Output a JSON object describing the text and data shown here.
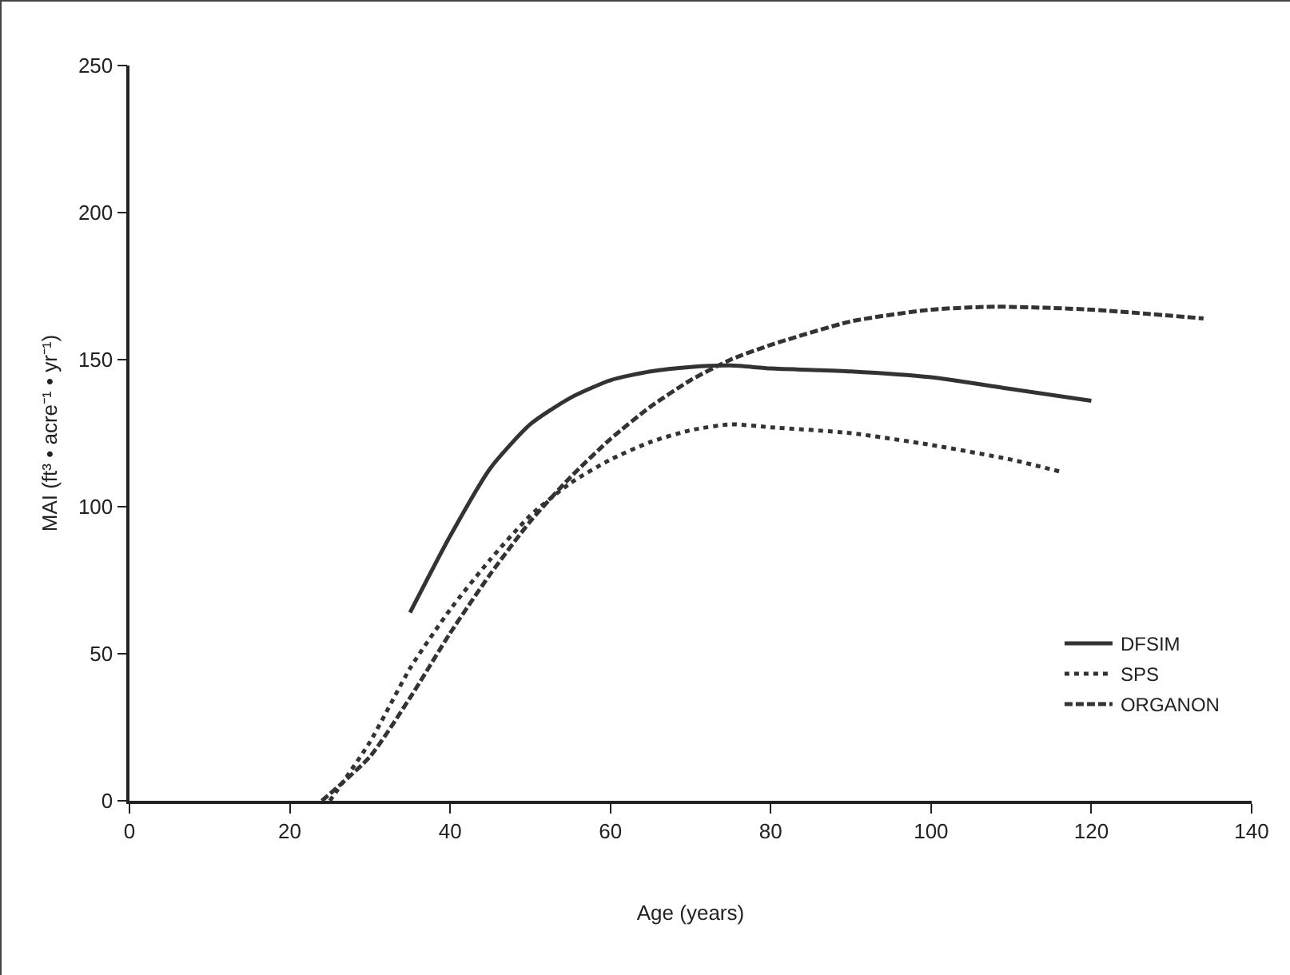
{
  "chart_data": {
    "type": "line",
    "xlabel": "Age (years)",
    "ylabel": "MAI (ft³ • acre⁻¹ • yr⁻¹)",
    "xlim": [
      0,
      140
    ],
    "xticks": [
      0,
      20,
      40,
      60,
      80,
      100,
      120,
      140
    ],
    "ylim": [
      0,
      250
    ],
    "yticks": [
      0,
      50,
      100,
      150,
      200,
      250
    ],
    "grid": false,
    "legend": "bottom right",
    "marker": "none",
    "series": [
      {
        "name": "DFSIM",
        "color": "#333333",
        "line_style": "solid",
        "x": [
          35,
          40,
          45,
          50,
          55,
          60,
          65,
          70,
          75,
          80,
          90,
          100,
          110,
          120
        ],
        "values": [
          64,
          90,
          113,
          128,
          137,
          143,
          146,
          147.5,
          148,
          147,
          146,
          144,
          140,
          136
        ]
      },
      {
        "name": "SPS",
        "color": "#333333",
        "line_style": "dotted",
        "x": [
          25,
          30,
          35,
          40,
          45,
          50,
          55,
          60,
          65,
          70,
          75,
          80,
          90,
          100,
          110,
          116
        ],
        "values": [
          0,
          20,
          45,
          65,
          82,
          97,
          108,
          116,
          122,
          126,
          128,
          127,
          125,
          121,
          116,
          112
        ]
      },
      {
        "name": "ORGANON",
        "color": "#333333",
        "line_style": "dashed",
        "x": [
          24,
          30,
          35,
          40,
          45,
          50,
          55,
          60,
          65,
          70,
          75,
          80,
          90,
          100,
          108,
          120,
          134
        ],
        "values": [
          0,
          15,
          35,
          57,
          77,
          95,
          110,
          123,
          134,
          143,
          150,
          155,
          163,
          167,
          168,
          167,
          164
        ]
      }
    ]
  }
}
